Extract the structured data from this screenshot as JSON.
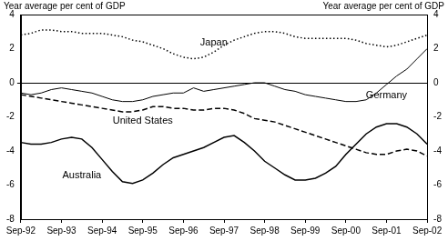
{
  "chart_data": {
    "type": "line",
    "ylabel": "Year average per cent of GDP",
    "y2label": "Year average per cent of GDP",
    "categories": [
      "Sep-92",
      null,
      null,
      null,
      "Sep-93",
      null,
      null,
      null,
      "Sep-94",
      null,
      null,
      null,
      "Sep-95",
      null,
      null,
      null,
      "Sep-96",
      null,
      null,
      null,
      "Sep-97",
      null,
      null,
      null,
      "Sep-98",
      null,
      null,
      null,
      "Sep-99",
      null,
      null,
      null,
      "Sep-00",
      null,
      null,
      null,
      "Sep-01",
      null,
      null,
      null,
      "Sep-02"
    ],
    "series": [
      {
        "name": "Japan",
        "color": "#000000",
        "line_style": "dotted",
        "values": [
          2.8,
          2.9,
          3.1,
          3.1,
          3.0,
          3.0,
          2.9,
          2.9,
          2.9,
          2.8,
          2.7,
          2.5,
          2.4,
          2.2,
          2.0,
          1.7,
          1.5,
          1.4,
          1.5,
          1.8,
          2.2,
          2.5,
          2.7,
          2.9,
          3.0,
          3.0,
          2.9,
          2.7,
          2.6,
          2.6,
          2.6,
          2.6,
          2.6,
          2.5,
          2.3,
          2.2,
          2.1,
          2.2,
          2.4,
          2.6,
          2.8
        ]
      },
      {
        "name": "United States",
        "color": "#000000",
        "line_style": "dashed",
        "values": [
          -0.7,
          -0.8,
          -0.9,
          -1.0,
          -1.1,
          -1.2,
          -1.3,
          -1.4,
          -1.5,
          -1.6,
          -1.7,
          -1.7,
          -1.6,
          -1.4,
          -1.4,
          -1.5,
          -1.5,
          -1.6,
          -1.6,
          -1.5,
          -1.5,
          -1.6,
          -1.8,
          -2.1,
          -2.2,
          -2.3,
          -2.5,
          -2.7,
          -2.9,
          -3.1,
          -3.3,
          -3.5,
          -3.7,
          -3.9,
          -4.1,
          -4.2,
          -4.2,
          -4.0,
          -3.9,
          -4.0,
          -4.3
        ]
      },
      {
        "name": "Germany",
        "color": "#000000",
        "line_style": "solid",
        "values": [
          -0.6,
          -0.7,
          -0.6,
          -0.4,
          -0.3,
          -0.4,
          -0.5,
          -0.6,
          -0.8,
          -1.0,
          -1.1,
          -1.1,
          -1.0,
          -0.8,
          -0.7,
          -0.6,
          -0.6,
          -0.3,
          -0.5,
          -0.4,
          -0.3,
          -0.2,
          -0.1,
          0.0,
          0.0,
          -0.2,
          -0.4,
          -0.5,
          -0.7,
          -0.8,
          -0.9,
          -1.0,
          -1.1,
          -1.1,
          -1.0,
          -0.6,
          -0.1,
          0.4,
          0.8,
          1.4,
          2.0
        ]
      },
      {
        "name": "Australia",
        "color": "#000000",
        "line_style": "solid",
        "values": [
          -3.5,
          -3.6,
          -3.6,
          -3.5,
          -3.3,
          -3.2,
          -3.3,
          -3.8,
          -4.5,
          -5.2,
          -5.8,
          -5.9,
          -5.7,
          -5.3,
          -4.8,
          -4.4,
          -4.2,
          -4.0,
          -3.8,
          -3.5,
          -3.2,
          -3.1,
          -3.5,
          -4.0,
          -4.6,
          -5.0,
          -5.4,
          -5.7,
          -5.7,
          -5.6,
          -5.3,
          -4.9,
          -4.2,
          -3.6,
          -3.0,
          -2.6,
          -2.4,
          -2.4,
          -2.6,
          -3.0,
          -3.6
        ]
      }
    ],
    "ylim": [
      -8,
      4
    ],
    "yticks": [
      -8,
      -6,
      -4,
      -2,
      0,
      2,
      4
    ],
    "y2lim": [
      -8,
      4
    ],
    "y2ticks": [
      -8,
      -6,
      -4,
      -2,
      0,
      2,
      4
    ],
    "grid": false
  }
}
